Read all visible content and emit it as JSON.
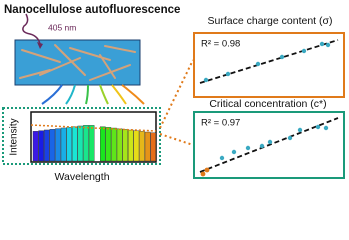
{
  "header": {
    "title": "Nanocellulose autofluorescence"
  },
  "excitation": {
    "label": "405 nm"
  },
  "spectrum": {
    "y_label": "Intensity",
    "x_label": "Wavelength"
  },
  "panels": [
    {
      "title": "Surface charge content (σ)",
      "fit": "R² = 0.98"
    },
    {
      "title": "Critical concentration (c*)",
      "fit": "R² = 0.97"
    }
  ]
}
